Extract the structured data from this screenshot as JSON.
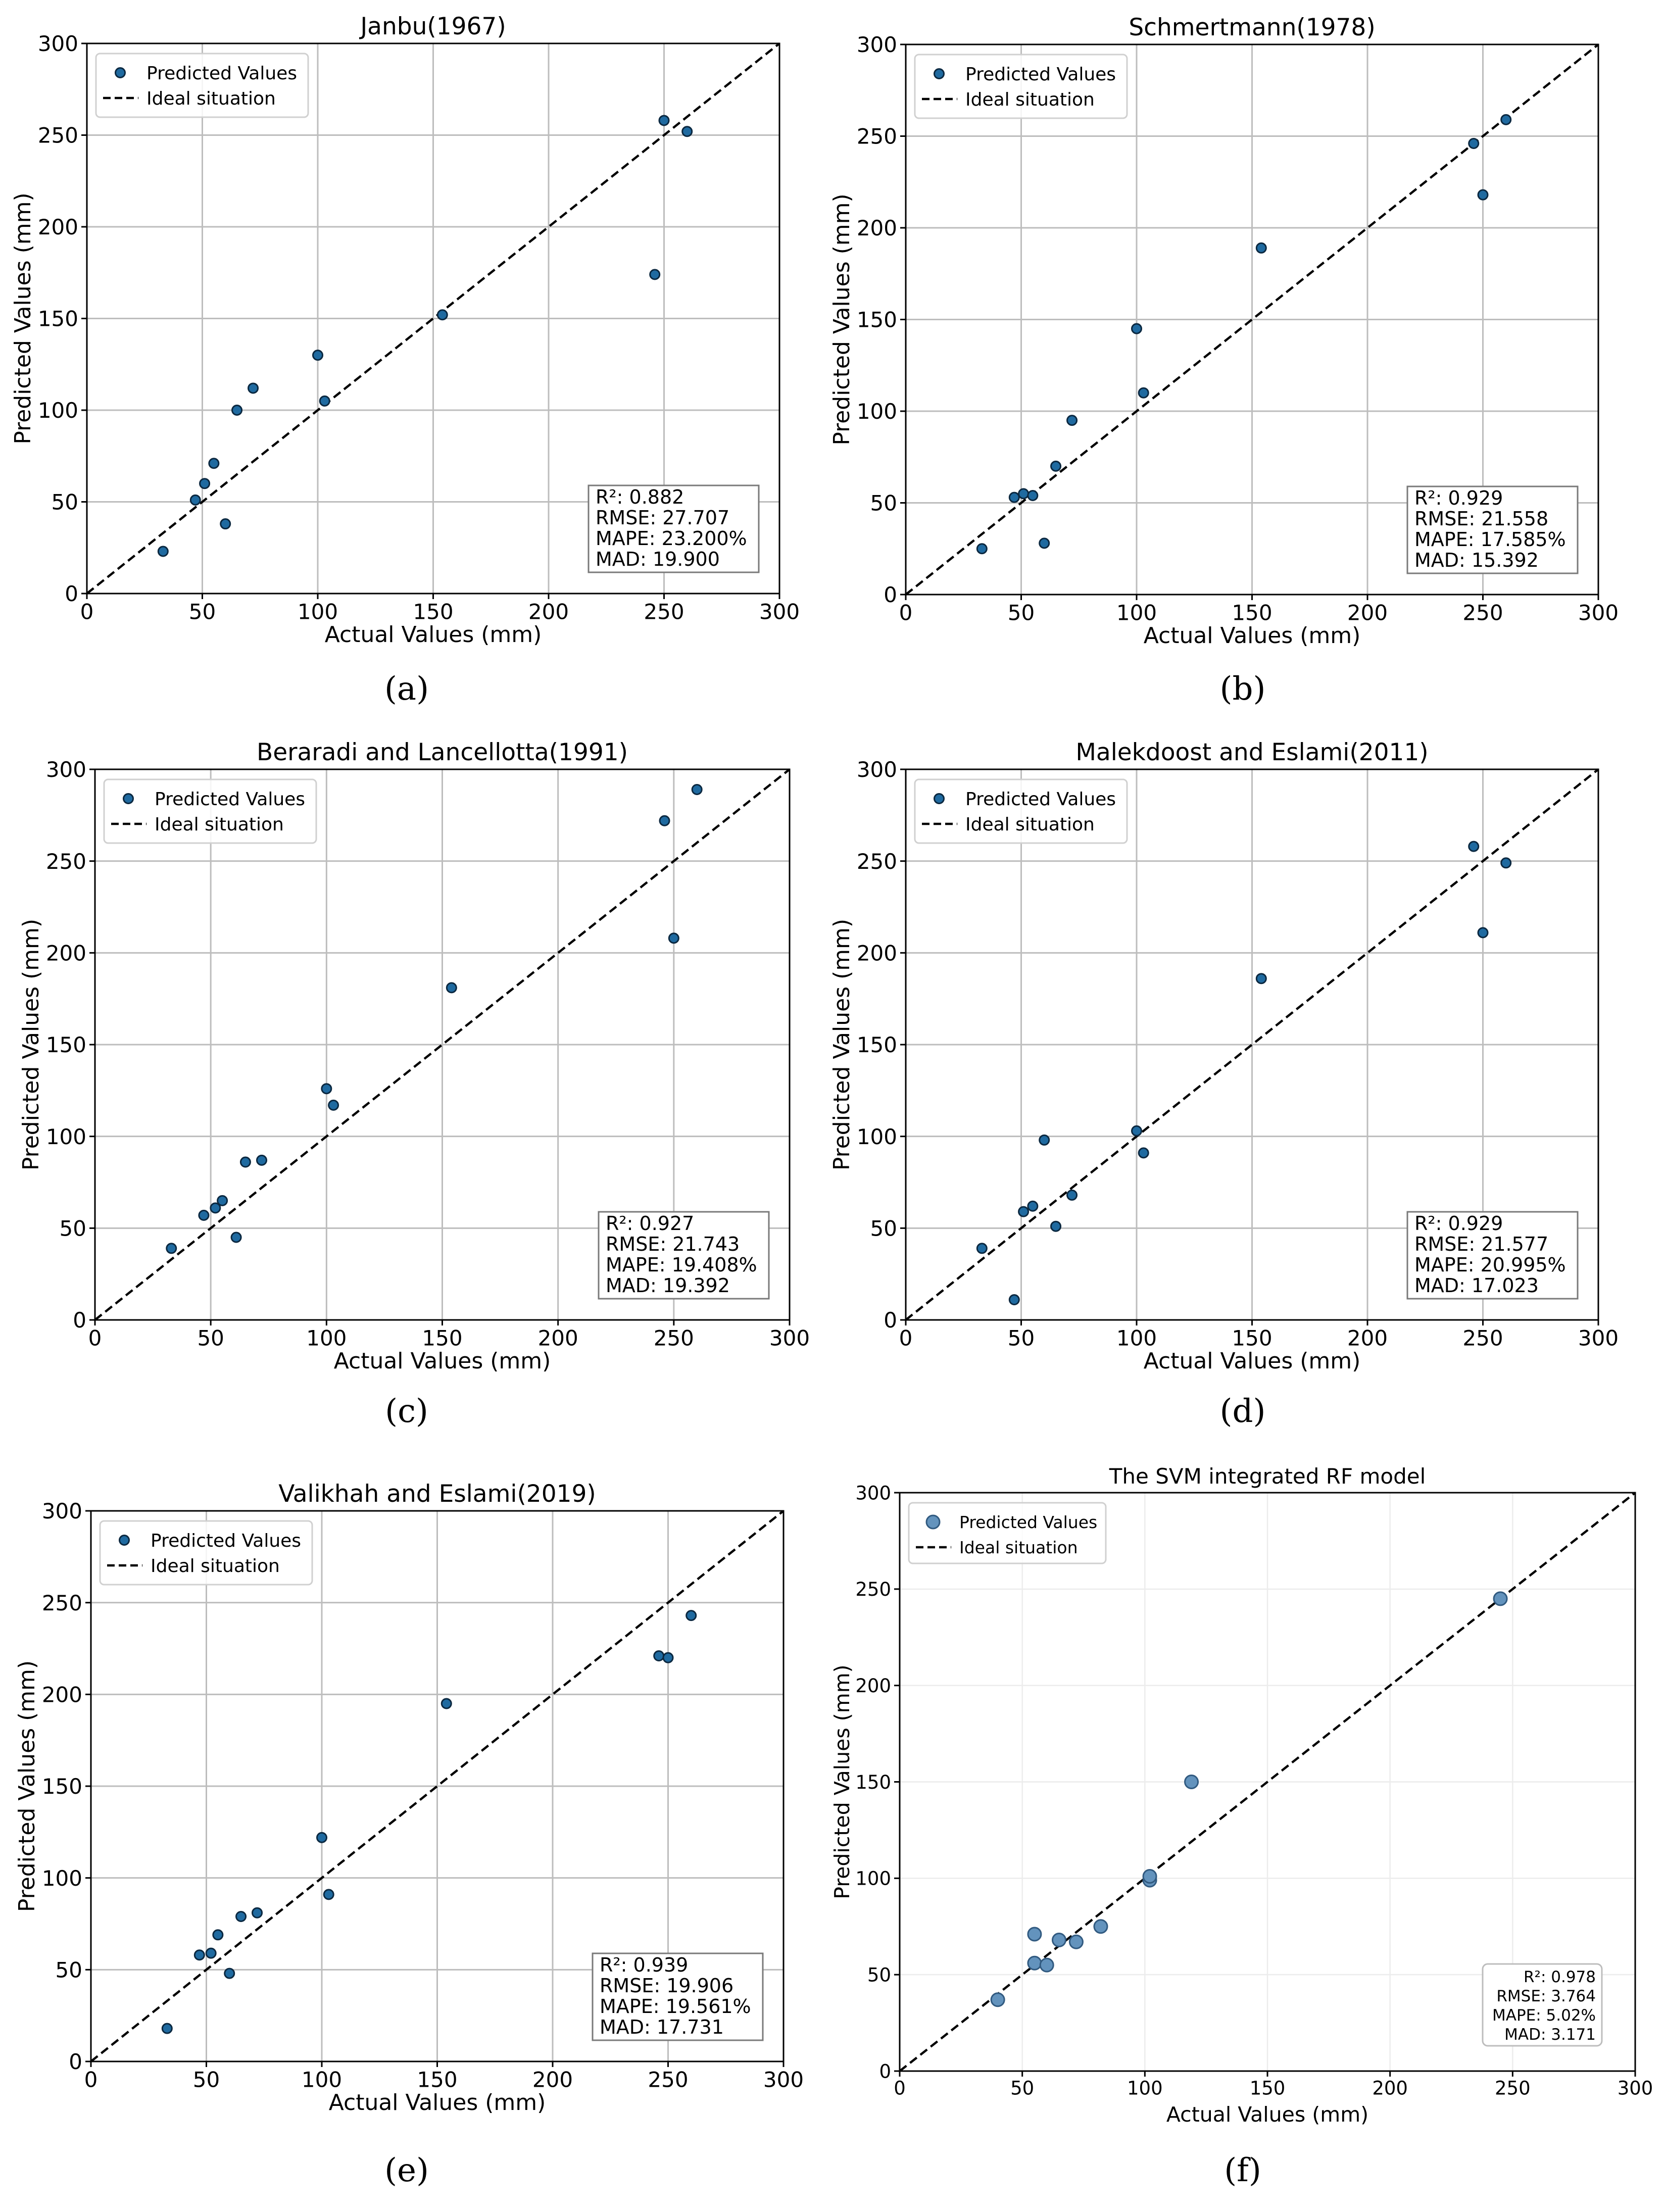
{
  "chart_data": [
    {
      "type": "scatter",
      "title": "Janbu(1967)",
      "xlabel": "Actual Values (mm)",
      "ylabel": "Predicted Values (mm)",
      "xlim": [
        0,
        300
      ],
      "ylim": [
        0,
        300
      ],
      "xticks": [
        "0",
        "50",
        "100",
        "150",
        "200",
        "250",
        "300"
      ],
      "yticks": [
        "0",
        "50",
        "100",
        "150",
        "200",
        "250",
        "300"
      ],
      "grid": true,
      "legend_position": "top-left",
      "series": [
        {
          "name": "Predicted Values",
          "x": [
            33,
            47,
            51,
            55,
            60,
            65,
            72,
            100,
            103,
            154,
            246,
            250,
            260
          ],
          "y": [
            23,
            51,
            60,
            71,
            38,
            100,
            112,
            130,
            105,
            152,
            174,
            258,
            252
          ]
        },
        {
          "name": "Ideal situation",
          "x": [
            0,
            300
          ],
          "y": [
            0,
            300
          ]
        }
      ],
      "metrics": [
        "R²: 0.882",
        "RMSE: 27.707",
        "MAPE: 23.200%",
        "MAD: 19.900"
      ],
      "caption": "(a)"
    },
    {
      "type": "scatter",
      "title": "Schmertmann(1978)",
      "xlabel": "Actual Values (mm)",
      "ylabel": "Predicted Values (mm)",
      "xlim": [
        0,
        300
      ],
      "ylim": [
        0,
        300
      ],
      "xticks": [
        "0",
        "50",
        "100",
        "150",
        "200",
        "250",
        "300"
      ],
      "yticks": [
        "0",
        "50",
        "100",
        "150",
        "200",
        "250",
        "300"
      ],
      "grid": true,
      "legend_position": "top-left",
      "series": [
        {
          "name": "Predicted Values",
          "x": [
            33,
            47,
            51,
            55,
            60,
            65,
            72,
            100,
            103,
            154,
            246,
            250,
            260
          ],
          "y": [
            25,
            53,
            55,
            54,
            28,
            70,
            95,
            145,
            110,
            189,
            246,
            218,
            259
          ]
        },
        {
          "name": "Ideal situation",
          "x": [
            0,
            300
          ],
          "y": [
            0,
            300
          ]
        }
      ],
      "metrics": [
        "R²: 0.929",
        "RMSE: 21.558",
        "MAPE: 17.585%",
        "MAD: 15.392"
      ],
      "caption": "(b)"
    },
    {
      "type": "scatter",
      "title": "Beraradi and Lancellotta(1991)",
      "xlabel": "Actual Values (mm)",
      "ylabel": "Predicted Values (mm)",
      "xlim": [
        0,
        300
      ],
      "ylim": [
        0,
        300
      ],
      "xticks": [
        "0",
        "50",
        "100",
        "150",
        "200",
        "250",
        "300"
      ],
      "yticks": [
        "0",
        "50",
        "100",
        "150",
        "200",
        "250",
        "300"
      ],
      "grid": true,
      "legend_position": "top-left",
      "series": [
        {
          "name": "Predicted Values",
          "x": [
            33,
            47,
            52,
            55,
            61,
            65,
            72,
            100,
            103,
            154,
            246,
            250,
            260
          ],
          "y": [
            39,
            57,
            61,
            65,
            45,
            86,
            87,
            126,
            117,
            181,
            272,
            208,
            289
          ]
        },
        {
          "name": "Ideal situation",
          "x": [
            0,
            300
          ],
          "y": [
            0,
            300
          ]
        }
      ],
      "metrics": [
        "R²: 0.927",
        "RMSE: 21.743",
        "MAPE: 19.408%",
        "MAD: 19.392"
      ],
      "caption": "(c)"
    },
    {
      "type": "scatter",
      "title": "Malekdoost and Eslami(2011)",
      "xlabel": "Actual Values (mm)",
      "ylabel": "Predicted Values (mm)",
      "xlim": [
        0,
        300
      ],
      "ylim": [
        0,
        300
      ],
      "xticks": [
        "0",
        "50",
        "100",
        "150",
        "200",
        "250",
        "300"
      ],
      "yticks": [
        "0",
        "50",
        "100",
        "150",
        "200",
        "250",
        "300"
      ],
      "grid": true,
      "legend_position": "top-left",
      "series": [
        {
          "name": "Predicted Values",
          "x": [
            33,
            47,
            51,
            55,
            60,
            65,
            72,
            100,
            103,
            154,
            246,
            250,
            260
          ],
          "y": [
            39,
            11,
            59,
            62,
            98,
            51,
            68,
            103,
            91,
            186,
            258,
            211,
            249
          ]
        },
        {
          "name": "Ideal situation",
          "x": [
            0,
            300
          ],
          "y": [
            0,
            300
          ]
        }
      ],
      "metrics": [
        "R²: 0.929",
        "RMSE: 21.577",
        "MAPE: 20.995%",
        "MAD: 17.023"
      ],
      "caption": "(d)"
    },
    {
      "type": "scatter",
      "title": "Valikhah and Eslami(2019)",
      "xlabel": "Actual Values (mm)",
      "ylabel": "Predicted Values (mm)",
      "xlim": [
        0,
        300
      ],
      "ylim": [
        0,
        300
      ],
      "xticks": [
        "0",
        "50",
        "100",
        "150",
        "200",
        "250",
        "300"
      ],
      "yticks": [
        "0",
        "50",
        "100",
        "150",
        "200",
        "250",
        "300"
      ],
      "grid": true,
      "legend_position": "top-left",
      "series": [
        {
          "name": "Predicted Values",
          "x": [
            33,
            47,
            52,
            55,
            60,
            65,
            72,
            100,
            103,
            154,
            246,
            250,
            260
          ],
          "y": [
            18,
            58,
            59,
            69,
            48,
            79,
            81,
            122,
            91,
            195,
            221,
            220,
            243
          ]
        },
        {
          "name": "Ideal situation",
          "x": [
            0,
            300
          ],
          "y": [
            0,
            300
          ]
        }
      ],
      "metrics": [
        "R²: 0.939",
        "RMSE: 19.906",
        "MAPE: 19.561%",
        "MAD: 17.731"
      ],
      "caption": "(e)"
    },
    {
      "type": "scatter",
      "title": "The SVM integrated RF model",
      "xlabel": "Actual Values (mm)",
      "ylabel": "Predicted Values (mm)",
      "xlim": [
        0,
        300
      ],
      "ylim": [
        0,
        300
      ],
      "xticks": [
        "0",
        "50",
        "100",
        "150",
        "200",
        "250",
        "300"
      ],
      "yticks": [
        "0",
        "50",
        "100",
        "150",
        "200",
        "250",
        "300"
      ],
      "grid": true,
      "legend_position": "top-left",
      "series": [
        {
          "name": "Predicted Values",
          "x": [
            40,
            55,
            55,
            60,
            65,
            72,
            82,
            102,
            102,
            119,
            245
          ],
          "y": [
            37,
            71,
            56,
            55,
            68,
            67,
            75,
            99,
            101,
            150,
            245
          ]
        },
        {
          "name": "Ideal situation",
          "x": [
            0,
            300
          ],
          "y": [
            0,
            300
          ]
        }
      ],
      "metrics": [
        "R²: 0.978",
        "RMSE: 3.764",
        "MAPE: 5.02%",
        "MAD: 3.171"
      ],
      "caption": "(f)"
    }
  ]
}
